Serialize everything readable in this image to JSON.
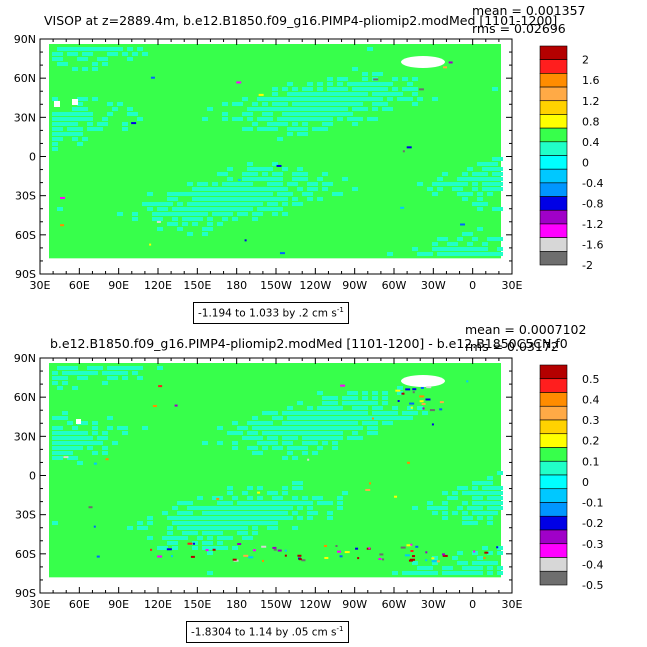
{
  "panels": [
    {
      "title": "VISOP at z=2889.4m, b.e12.B1850.f09_g16.PIMP4-pliomip2.modMed [1101-1200]",
      "mean": "mean = 0.001357",
      "rms": "rms = 0.02696",
      "subtitle_value": "-1.194 to 1.033 by .2 cm s",
      "subtitle_unit_exp": "-1",
      "legend_labels": [
        "2",
        "1.6",
        "1.2",
        "0.8",
        "0.4",
        "0",
        "-0.4",
        "-0.8",
        "-1.2",
        "-1.6",
        "-2"
      ]
    },
    {
      "title": "b.e12.B1850.f09_g16.PIMP4-pliomip2.modMed [1101-1200] - b.e12.B1850C5CN.f0",
      "mean": "mean = 0.0007102",
      "rms": "rms = 0.03172",
      "subtitle_value": "-1.8304 to 1.14 by .05 cm s",
      "subtitle_unit_exp": "-1",
      "legend_labels": [
        "0.5",
        "0.4",
        "0.3",
        "0.2",
        "0.1",
        "0",
        "-0.1",
        "-0.2",
        "-0.3",
        "-0.4",
        "-0.5"
      ]
    }
  ],
  "x_ticks": [
    "30E",
    "60E",
    "90E",
    "120E",
    "150E",
    "180",
    "150W",
    "120W",
    "90W",
    "60W",
    "30W",
    "0",
    "30E"
  ],
  "y_ticks": [
    "90N",
    "60N",
    "30N",
    "0",
    "30S",
    "60S",
    "90S"
  ],
  "colors": {
    "ocean_bg": "#37ff4b",
    "ocean_light": "#21ffc8",
    "land": "#ffffff",
    "palette": [
      "#b40000",
      "#ff1e1e",
      "#ff8c00",
      "#ffaa46",
      "#ffff00",
      "#37ff4b",
      "#21ffc8",
      "#00c8ff",
      "#0064ff",
      "#0000e6",
      "#a000c8",
      "#ff00ff",
      "#d7d7d7",
      "#6e6e6e"
    ],
    "legend_palette": [
      "#b40000",
      "#ff1e1e",
      "#ff8c00",
      "#ffaa46",
      "#ffd200",
      "#ffff00",
      "#37ff4b",
      "#21ffc8",
      "#00ffff",
      "#00c8ff",
      "#0096ff",
      "#0000e6",
      "#a000c8",
      "#ff00ff",
      "#d7d7d7",
      "#6e6e6e"
    ]
  }
}
